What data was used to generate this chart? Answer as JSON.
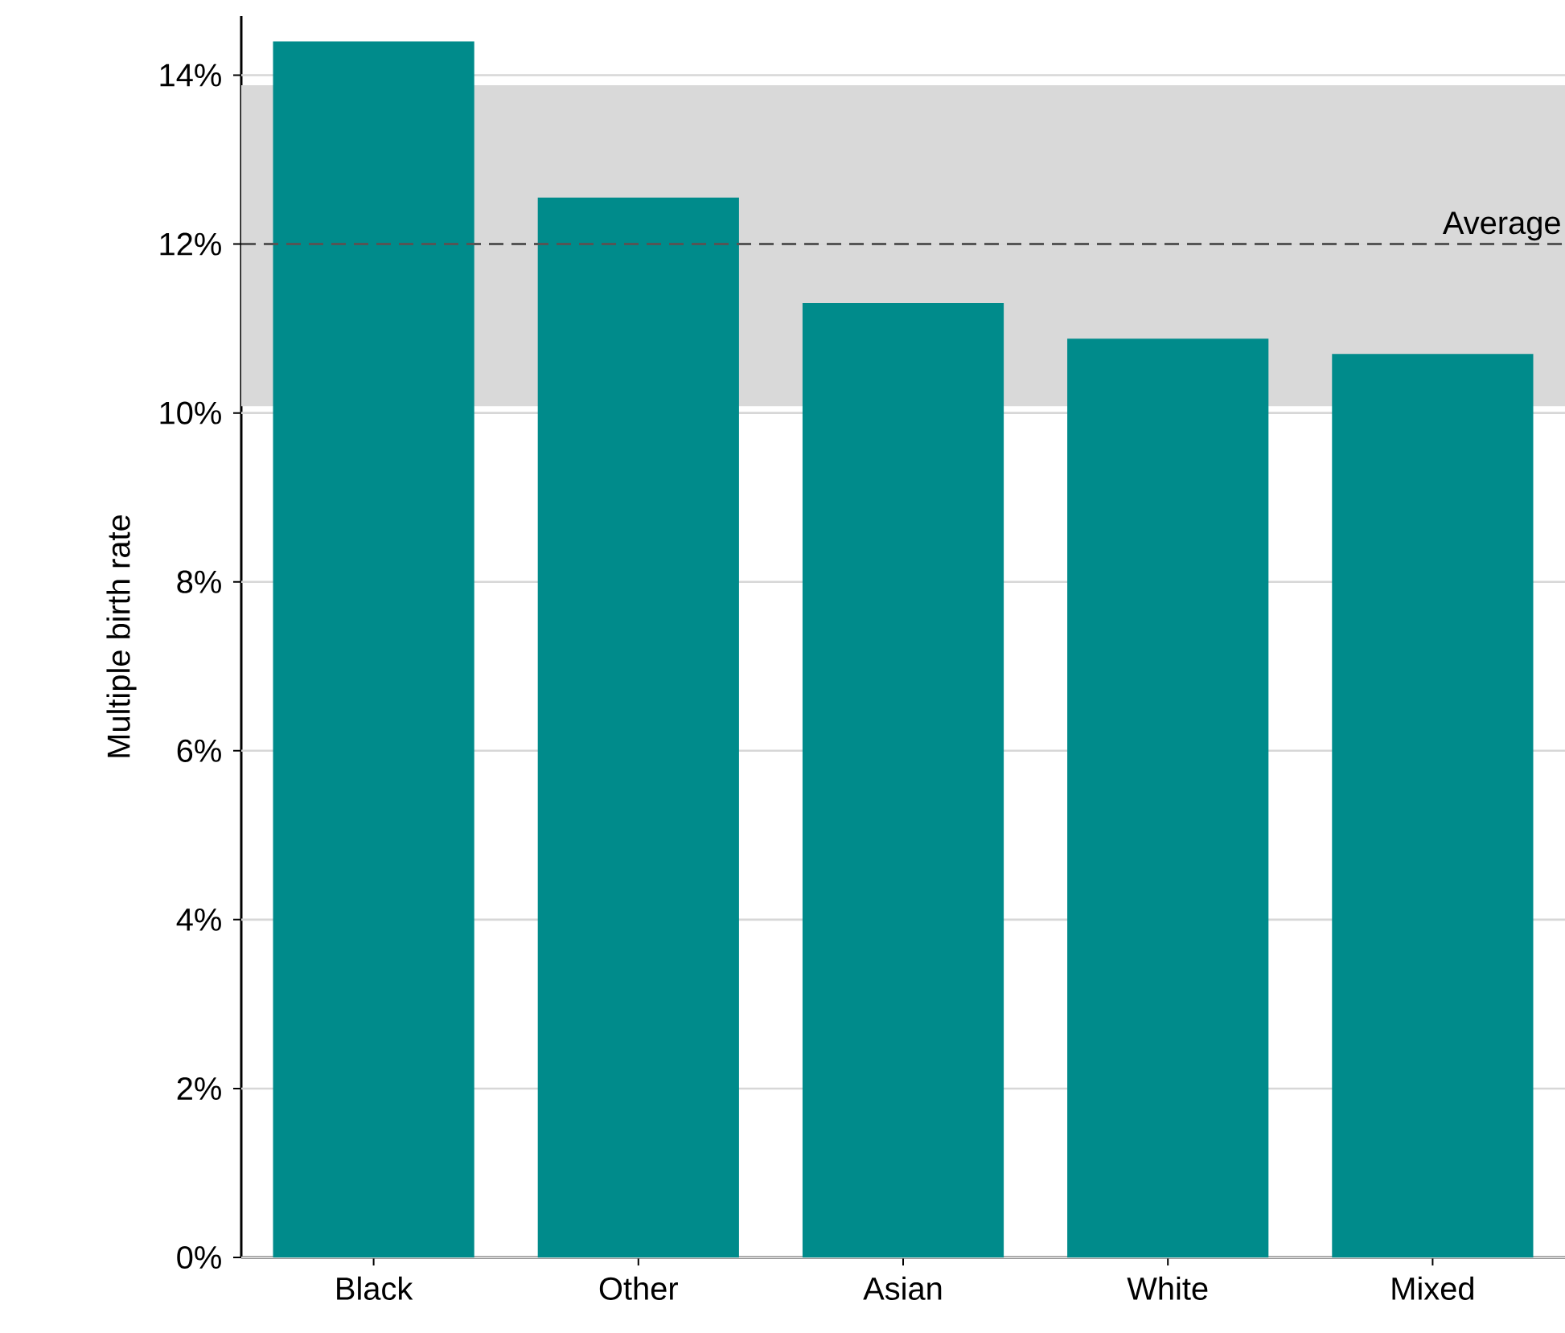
{
  "chart_data": {
    "type": "bar",
    "ylabel": "Multiple birth rate",
    "categories": [
      "Black",
      "Other",
      "Asian",
      "White",
      "Mixed"
    ],
    "values": [
      14.4,
      12.55,
      11.3,
      10.88,
      10.7
    ],
    "color": "#008b8b",
    "ylim": [
      0,
      14.7
    ],
    "yticks": [
      {
        "value": 0,
        "label": "0%"
      },
      {
        "value": 2,
        "label": "2%"
      },
      {
        "value": 4,
        "label": "4%"
      },
      {
        "value": 6,
        "label": "6%"
      },
      {
        "value": 8,
        "label": "8%"
      },
      {
        "value": 10,
        "label": "10%"
      },
      {
        "value": 12,
        "label": "12%"
      },
      {
        "value": 14,
        "label": "14%"
      }
    ],
    "grid": "y",
    "ref_lines": [
      {
        "axis": "y",
        "value": 12,
        "label": "Average",
        "color": "#555555",
        "line_style": "dashed"
      }
    ],
    "bands": [
      {
        "axis": "y",
        "from": 10.08,
        "to": 13.88,
        "color": "#d9d9d9"
      }
    ]
  }
}
